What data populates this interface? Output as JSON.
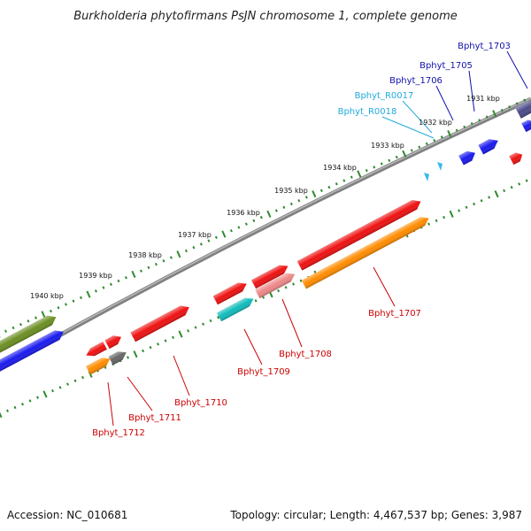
{
  "title": "Burkholderia phytofirmans PsJN chromosome 1, complete genome",
  "footer": {
    "accession": "Accession: NC_010681",
    "topology": "Topology: circular; Length: 4,467,537 bp; Genes: 3,987"
  },
  "scale_labels": [
    "1931 kbp",
    "1932 kbp",
    "1933 kbp",
    "1934 kbp",
    "1935 kbp",
    "1936 kbp",
    "1937 kbp",
    "1938 kbp",
    "1939 kbp",
    "1940 kbp"
  ],
  "colors": {
    "backbone": "#808080",
    "outer_ticks": "#2e8b2e",
    "red_gene": "#ee1111",
    "blue_gene": "#1a1aee",
    "olive_gene": "#6b8e23",
    "orange_gene": "#ff8c00",
    "cyan_gene": "#11bbbb",
    "pink_gene": "#ee8888",
    "gray_gene": "#666666",
    "navy_gene": "#4b4b8a",
    "rna_gene": "#33bbee",
    "label_red": "#cc0000",
    "label_blue": "#1111aa",
    "label_cyan": "#22aadd"
  },
  "gene_labels": [
    {
      "name": "Bphyt_1703",
      "color": "label_blue"
    },
    {
      "name": "Bphyt_1705",
      "color": "label_blue"
    },
    {
      "name": "Bphyt_1706",
      "color": "label_blue"
    },
    {
      "name": "Bphyt_R0017",
      "color": "label_cyan"
    },
    {
      "name": "Bphyt_R0018",
      "color": "label_cyan"
    },
    {
      "name": "Bphyt_1707",
      "color": "label_red"
    },
    {
      "name": "Bphyt_1708",
      "color": "label_red"
    },
    {
      "name": "Bphyt_1709",
      "color": "label_red"
    },
    {
      "name": "Bphyt_1710",
      "color": "label_red"
    },
    {
      "name": "Bphyt_1711",
      "color": "label_red"
    },
    {
      "name": "Bphyt_1712",
      "color": "label_red"
    }
  ]
}
